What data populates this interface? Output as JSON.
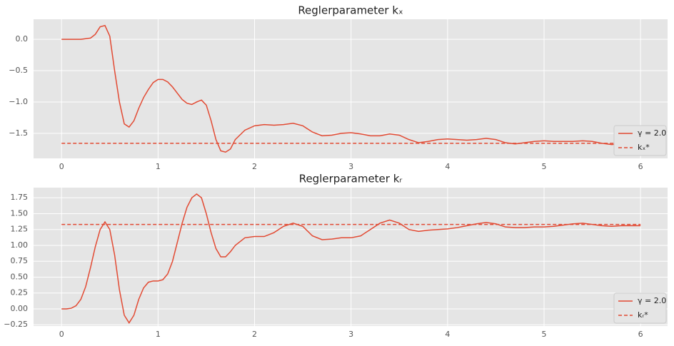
{
  "chart_data": [
    {
      "type": "line",
      "title": "Reglerparameter kₓ",
      "x": [
        0,
        0.05,
        0.1,
        0.15,
        0.2,
        0.25,
        0.3,
        0.35,
        0.4,
        0.45,
        0.5,
        0.55,
        0.6,
        0.65,
        0.7,
        0.75,
        0.8,
        0.85,
        0.9,
        0.95,
        1.0,
        1.05,
        1.1,
        1.15,
        1.2,
        1.25,
        1.3,
        1.35,
        1.4,
        1.45,
        1.5,
        1.55,
        1.6,
        1.65,
        1.7,
        1.75,
        1.8,
        1.9,
        2.0,
        2.1,
        2.2,
        2.3,
        2.4,
        2.5,
        2.6,
        2.7,
        2.8,
        2.9,
        3.0,
        3.1,
        3.2,
        3.3,
        3.4,
        3.5,
        3.6,
        3.7,
        3.8,
        3.9,
        4.0,
        4.1,
        4.2,
        4.3,
        4.4,
        4.5,
        4.6,
        4.7,
        4.8,
        4.9,
        5.0,
        5.1,
        5.2,
        5.3,
        5.4,
        5.5,
        5.6,
        5.7,
        5.8,
        5.9,
        6.0
      ],
      "series": [
        {
          "name": "γ = 2.0",
          "color": "#e24a33",
          "values": [
            0,
            0,
            0,
            0,
            0,
            0.01,
            0.02,
            0.08,
            0.2,
            0.22,
            0.05,
            -0.5,
            -1.0,
            -1.35,
            -1.4,
            -1.3,
            -1.1,
            -0.93,
            -0.8,
            -0.69,
            -0.64,
            -0.64,
            -0.68,
            -0.76,
            -0.86,
            -0.96,
            -1.02,
            -1.04,
            -1.0,
            -0.97,
            -1.05,
            -1.3,
            -1.6,
            -1.78,
            -1.8,
            -1.75,
            -1.6,
            -1.45,
            -1.38,
            -1.36,
            -1.37,
            -1.36,
            -1.34,
            -1.38,
            -1.48,
            -1.54,
            -1.53,
            -1.5,
            -1.49,
            -1.51,
            -1.54,
            -1.54,
            -1.51,
            -1.53,
            -1.6,
            -1.65,
            -1.63,
            -1.6,
            -1.59,
            -1.6,
            -1.61,
            -1.6,
            -1.58,
            -1.6,
            -1.65,
            -1.67,
            -1.65,
            -1.63,
            -1.62,
            -1.63,
            -1.63,
            -1.63,
            -1.62,
            -1.63,
            -1.66,
            -1.68,
            -1.67,
            -1.66,
            -1.65
          ]
        },
        {
          "name": "kₓ*",
          "color": "#e24a33",
          "dashed": true,
          "x": [
            0,
            6
          ],
          "values": [
            -1.66,
            -1.66
          ]
        }
      ],
      "xlim": [
        -0.29,
        6.28
      ],
      "ylim": [
        -1.9,
        0.32
      ],
      "xticks": [
        0,
        1,
        2,
        3,
        4,
        5,
        6
      ],
      "yticks": [
        {
          "value": -1.5,
          "label": "−1.5"
        },
        {
          "value": -1,
          "label": "−1.0"
        },
        {
          "value": -0.5,
          "label": "−0.5"
        },
        {
          "value": 0,
          "label": "0.0"
        }
      ],
      "grid": true,
      "legend": "lower right"
    },
    {
      "type": "line",
      "title": "Reglerparameter kᵣ",
      "x": [
        0,
        0.05,
        0.1,
        0.15,
        0.2,
        0.25,
        0.3,
        0.35,
        0.4,
        0.45,
        0.5,
        0.55,
        0.6,
        0.65,
        0.7,
        0.75,
        0.8,
        0.85,
        0.9,
        0.95,
        1.0,
        1.05,
        1.1,
        1.15,
        1.2,
        1.25,
        1.3,
        1.35,
        1.4,
        1.45,
        1.5,
        1.55,
        1.6,
        1.65,
        1.7,
        1.75,
        1.8,
        1.9,
        2.0,
        2.1,
        2.2,
        2.3,
        2.4,
        2.5,
        2.6,
        2.7,
        2.8,
        2.9,
        3.0,
        3.1,
        3.2,
        3.3,
        3.4,
        3.5,
        3.6,
        3.7,
        3.8,
        3.9,
        4.0,
        4.1,
        4.2,
        4.3,
        4.4,
        4.5,
        4.6,
        4.7,
        4.8,
        4.9,
        5.0,
        5.1,
        5.2,
        5.3,
        5.4,
        5.5,
        5.6,
        5.7,
        5.8,
        5.9,
        6.0
      ],
      "series": [
        {
          "name": "γ = 2.0",
          "color": "#e24a33",
          "values": [
            0,
            0,
            0.01,
            0.05,
            0.15,
            0.35,
            0.65,
            0.98,
            1.25,
            1.37,
            1.25,
            0.85,
            0.3,
            -0.1,
            -0.22,
            -0.1,
            0.15,
            0.33,
            0.42,
            0.44,
            0.44,
            0.46,
            0.55,
            0.75,
            1.05,
            1.35,
            1.6,
            1.75,
            1.81,
            1.75,
            1.5,
            1.2,
            0.95,
            0.82,
            0.82,
            0.9,
            1.0,
            1.12,
            1.14,
            1.14,
            1.2,
            1.3,
            1.35,
            1.3,
            1.15,
            1.09,
            1.1,
            1.12,
            1.12,
            1.15,
            1.25,
            1.35,
            1.4,
            1.35,
            1.25,
            1.22,
            1.24,
            1.25,
            1.26,
            1.28,
            1.31,
            1.34,
            1.36,
            1.34,
            1.29,
            1.28,
            1.28,
            1.29,
            1.29,
            1.3,
            1.32,
            1.34,
            1.35,
            1.33,
            1.31,
            1.3,
            1.31,
            1.31,
            1.31
          ]
        },
        {
          "name": "kᵣ*",
          "color": "#e24a33",
          "dashed": true,
          "x": [
            0,
            6
          ],
          "values": [
            1.33,
            1.33
          ]
        }
      ],
      "xlim": [
        -0.29,
        6.28
      ],
      "ylim": [
        -0.27,
        1.91
      ],
      "xticks": [
        0,
        1,
        2,
        3,
        4,
        5,
        6
      ],
      "yticks": [
        {
          "value": -0.25,
          "label": "−0.25"
        },
        {
          "value": 0,
          "label": "0.00"
        },
        0.25,
        {
          "value": 0.5,
          "label": "0.50"
        },
        0.75,
        {
          "value": 1,
          "label": "1.00"
        },
        1.25,
        {
          "value": 1.5,
          "label": "1.50"
        },
        1.75
      ],
      "grid": true,
      "legend": "lower right"
    }
  ]
}
